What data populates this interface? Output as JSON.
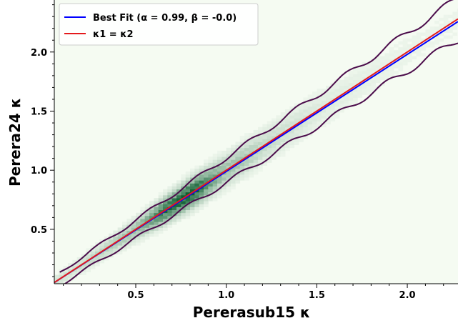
{
  "chart_data": {
    "type": "scatter",
    "subtype": "2d-histogram with density contour",
    "xlabel": "Pererasub15 κ",
    "ylabel": "Perera24 κ",
    "xlim": [
      0.05,
      2.28
    ],
    "ylim": [
      0.04,
      2.44
    ],
    "xticks": [
      "0.5",
      "1.0",
      "1.5",
      "2.0"
    ],
    "yticks": [
      "0.5",
      "1.0",
      "1.5",
      "2.0"
    ],
    "grid": false,
    "legend_position": "top-left",
    "legend": {
      "best_fit": "Best Fit (α = 0.99, β = -0.0)",
      "identity": "κ1 = κ2"
    },
    "series": [
      {
        "name": "Best Fit (α = 0.99, β = -0.0)",
        "type": "line",
        "slope": 0.99,
        "intercept": 0.0,
        "color": "#0000ff",
        "x": [
          0.05,
          2.28
        ],
        "y": [
          0.0495,
          2.2572
        ]
      },
      {
        "name": "κ1 = κ2",
        "type": "line",
        "slope": 1.0,
        "intercept": 0.0,
        "color": "#e41a1c",
        "x": [
          0.05,
          2.28
        ],
        "y": [
          0.05,
          2.28
        ]
      }
    ],
    "density_ridge": {
      "x": [
        0.15,
        0.35,
        0.5,
        0.6,
        0.65,
        0.7,
        0.75,
        0.8,
        0.85,
        0.9,
        1.0,
        1.1,
        1.2,
        1.35,
        1.5,
        1.7,
        1.9,
        2.1
      ],
      "y": [
        0.15,
        0.35,
        0.5,
        0.6,
        0.65,
        0.7,
        0.76,
        0.81,
        0.86,
        0.9,
        1.0,
        1.1,
        1.2,
        1.35,
        1.5,
        1.7,
        1.9,
        2.1
      ],
      "weight": [
        0.15,
        0.25,
        0.35,
        0.6,
        0.8,
        0.85,
        0.9,
        0.95,
        0.85,
        0.6,
        0.35,
        0.3,
        0.2,
        0.15,
        0.1,
        0.07,
        0.05,
        0.04
      ]
    },
    "colors": {
      "hist_low": "#f5fbf2",
      "hist_high": "#0e5f32",
      "contour": "#4b0c4b",
      "best_fit": "#0000ff",
      "identity": "#e41a1c"
    }
  }
}
